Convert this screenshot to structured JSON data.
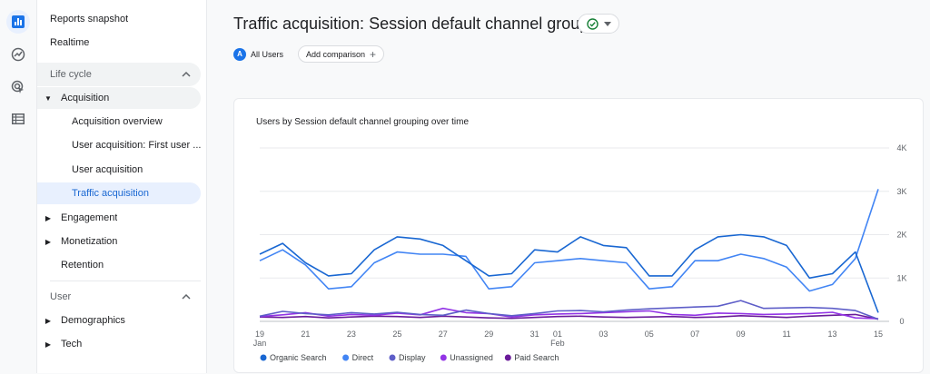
{
  "rail": {
    "icons": [
      "reports-icon",
      "explore-icon",
      "advertising-icon",
      "configure-icon"
    ]
  },
  "sidenav": {
    "reports_snapshot": "Reports snapshot",
    "realtime": "Realtime",
    "life_cycle": "Life cycle",
    "acquisition": "Acquisition",
    "acquisition_overview": "Acquisition overview",
    "user_acquisition_first": "User acquisition: First user ...",
    "user_acquisition": "User acquisition",
    "traffic_acquisition": "Traffic acquisition",
    "engagement": "Engagement",
    "monetization": "Monetization",
    "retention": "Retention",
    "user": "User",
    "demographics": "Demographics",
    "tech": "Tech"
  },
  "header": {
    "title": "Traffic acquisition: Session default channel grouping"
  },
  "comparison": {
    "avatar_letter": "A",
    "all_users": "All Users",
    "add_comparison": "Add comparison"
  },
  "chart_card": {
    "title": "Users by Session default channel grouping over time"
  },
  "colors": {
    "accent": "#1a73e8",
    "selected_bg": "#e8f0fe",
    "selected_text": "#1967d2"
  },
  "chart_data": {
    "type": "line",
    "x": [
      "Jan 19",
      "Jan 20",
      "Jan 21",
      "Jan 22",
      "Jan 23",
      "Jan 24",
      "Jan 25",
      "Jan 26",
      "Jan 27",
      "Jan 28",
      "Jan 29",
      "Jan 30",
      "Jan 31",
      "Feb 01",
      "Feb 02",
      "Feb 03",
      "Feb 04",
      "Feb 05",
      "Feb 06",
      "Feb 07",
      "Feb 08",
      "Feb 09",
      "Feb 10",
      "Feb 11",
      "Feb 12",
      "Feb 13",
      "Feb 14",
      "Feb 15"
    ],
    "x_tick_labels": [
      {
        "x": "Jan 19",
        "label": "19",
        "sub": "Jan"
      },
      {
        "x": "Jan 21",
        "label": "21",
        "sub": ""
      },
      {
        "x": "Jan 23",
        "label": "23",
        "sub": ""
      },
      {
        "x": "Jan 25",
        "label": "25",
        "sub": ""
      },
      {
        "x": "Jan 27",
        "label": "27",
        "sub": ""
      },
      {
        "x": "Jan 29",
        "label": "29",
        "sub": ""
      },
      {
        "x": "Jan 31",
        "label": "31",
        "sub": ""
      },
      {
        "x": "Feb 01",
        "label": "01",
        "sub": "Feb"
      },
      {
        "x": "Feb 03",
        "label": "03",
        "sub": ""
      },
      {
        "x": "Feb 05",
        "label": "05",
        "sub": ""
      },
      {
        "x": "Feb 07",
        "label": "07",
        "sub": ""
      },
      {
        "x": "Feb 09",
        "label": "09",
        "sub": ""
      },
      {
        "x": "Feb 11",
        "label": "11",
        "sub": ""
      },
      {
        "x": "Feb 13",
        "label": "13",
        "sub": ""
      },
      {
        "x": "Feb 15",
        "label": "15",
        "sub": ""
      }
    ],
    "y_ticks": [
      0,
      1000,
      2000,
      3000,
      4000
    ],
    "y_tick_labels": [
      "0",
      "1K",
      "2K",
      "3K",
      "4K"
    ],
    "ylim": [
      0,
      4000
    ],
    "grid": true,
    "legend_position": "bottom",
    "series": [
      {
        "name": "Organic Search",
        "color": "#1967d2",
        "values": [
          1550,
          1800,
          1350,
          1050,
          1100,
          1650,
          1950,
          1900,
          1750,
          1400,
          1050,
          1100,
          1650,
          1600,
          1950,
          1750,
          1700,
          1050,
          1050,
          1650,
          1950,
          2000,
          1950,
          1750,
          1000,
          1100,
          1600,
          200
        ]
      },
      {
        "name": "Direct",
        "color": "#4285f4",
        "values": [
          1400,
          1650,
          1300,
          750,
          800,
          1350,
          1600,
          1550,
          1550,
          1500,
          750,
          800,
          1350,
          1400,
          1450,
          1400,
          1350,
          750,
          800,
          1400,
          1400,
          1550,
          1450,
          1250,
          700,
          850,
          1450,
          3050
        ]
      },
      {
        "name": "Display",
        "color": "#5e5ec8",
        "values": [
          120,
          230,
          180,
          150,
          200,
          170,
          210,
          160,
          140,
          260,
          180,
          130,
          180,
          240,
          250,
          220,
          260,
          290,
          310,
          330,
          350,
          480,
          300,
          310,
          320,
          300,
          250,
          50
        ]
      },
      {
        "name": "Unassigned",
        "color": "#9334e6",
        "values": [
          110,
          150,
          200,
          120,
          160,
          140,
          190,
          150,
          300,
          200,
          180,
          100,
          150,
          170,
          180,
          200,
          220,
          240,
          160,
          140,
          190,
          180,
          160,
          170,
          180,
          210,
          80,
          60
        ]
      },
      {
        "name": "Paid Search",
        "color": "#6a1b9a",
        "values": [
          100,
          90,
          110,
          80,
          100,
          120,
          110,
          90,
          120,
          100,
          80,
          70,
          90,
          110,
          120,
          100,
          90,
          100,
          110,
          90,
          100,
          130,
          110,
          90,
          120,
          140,
          160,
          50
        ]
      }
    ]
  }
}
